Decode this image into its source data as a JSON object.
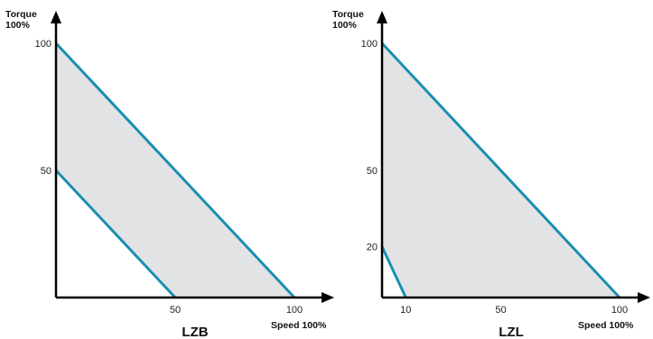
{
  "chart_data": [
    {
      "type": "area",
      "title": "LZB",
      "ylabel_line1": "Torque",
      "ylabel_line2": "100%",
      "xlabel": "Speed 100%",
      "xlim": [
        0,
        110
      ],
      "ylim": [
        0,
        110
      ],
      "x_ticks": [
        50,
        100
      ],
      "y_ticks": [
        50,
        100
      ],
      "lines": [
        {
          "points": [
            [
              0,
              100
            ],
            [
              100,
              0
            ]
          ]
        },
        {
          "points": [
            [
              0,
              50
            ],
            [
              50,
              0
            ]
          ]
        }
      ],
      "region": [
        [
          0,
          100
        ],
        [
          100,
          0
        ],
        [
          50,
          0
        ],
        [
          0,
          50
        ]
      ],
      "colors": {
        "line": "#1a8fb0",
        "fill": "#e2e3e5",
        "axis": "#000000"
      }
    },
    {
      "type": "area",
      "title": "LZL",
      "ylabel_line1": "Torque",
      "ylabel_line2": "100%",
      "xlabel": "Speed 100%",
      "xlim": [
        0,
        110
      ],
      "ylim": [
        0,
        110
      ],
      "x_ticks": [
        10,
        50,
        100
      ],
      "y_ticks": [
        20,
        50,
        100
      ],
      "lines": [
        {
          "points": [
            [
              0,
              100
            ],
            [
              100,
              0
            ]
          ]
        },
        {
          "points": [
            [
              0,
              20
            ],
            [
              10,
              0
            ]
          ]
        }
      ],
      "region": [
        [
          0,
          100
        ],
        [
          100,
          0
        ],
        [
          10,
          0
        ],
        [
          0,
          20
        ]
      ],
      "colors": {
        "line": "#1a8fb0",
        "fill": "#e2e3e5",
        "axis": "#000000"
      }
    }
  ]
}
